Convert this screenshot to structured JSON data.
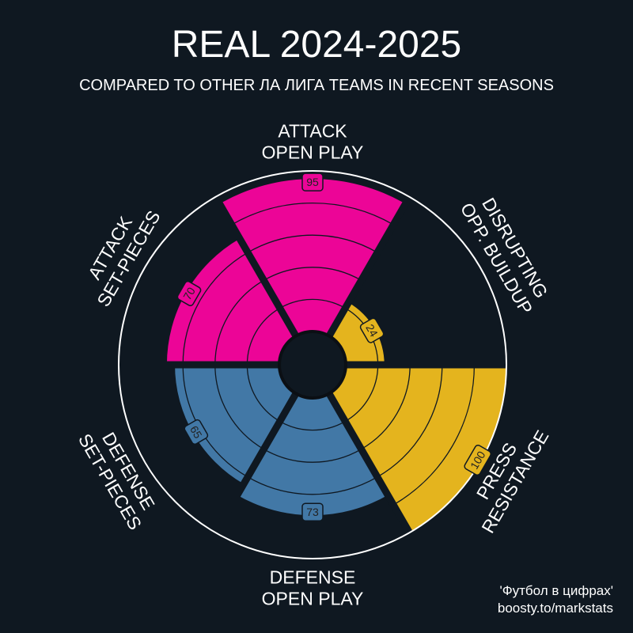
{
  "chart_data": {
    "type": "pizza",
    "title": "REAL 2024-2025",
    "subtitle": "COMPARED TO OTHER ЛА ЛИГА TEAMS IN RECENT SEASONS",
    "scale_max": 100,
    "grid_rings": [
      20,
      40,
      60,
      80
    ],
    "categories": [
      {
        "label_lines": [
          "ATTACK",
          "OPEN PLAY"
        ],
        "value": 95,
        "value_label": "95",
        "color": "#ec0597"
      },
      {
        "label_lines": [
          "DISRUPTING",
          "OPP. BUILDUP"
        ],
        "value": 24,
        "value_label": "24",
        "color": "#e4b41e"
      },
      {
        "label_lines": [
          "PRESS",
          "RESISTANCE"
        ],
        "value": 100,
        "value_label": "100",
        "color": "#e4b41e"
      },
      {
        "label_lines": [
          "DEFENSE",
          "OPEN PLAY"
        ],
        "value": 73,
        "value_label": "73",
        "color": "#4278a6"
      },
      {
        "label_lines": [
          "DEFENSE",
          "SET-PIECES"
        ],
        "value": 65,
        "value_label": "65",
        "color": "#4278a6"
      },
      {
        "label_lines": [
          "ATTACK",
          "SET-PIECES"
        ],
        "value": 70,
        "value_label": "70",
        "color": "#ec0597"
      }
    ],
    "background": "#0f1821"
  },
  "credit": {
    "line1": "'Футбол в цифрах'",
    "line2": "boosty.to/markstats"
  }
}
